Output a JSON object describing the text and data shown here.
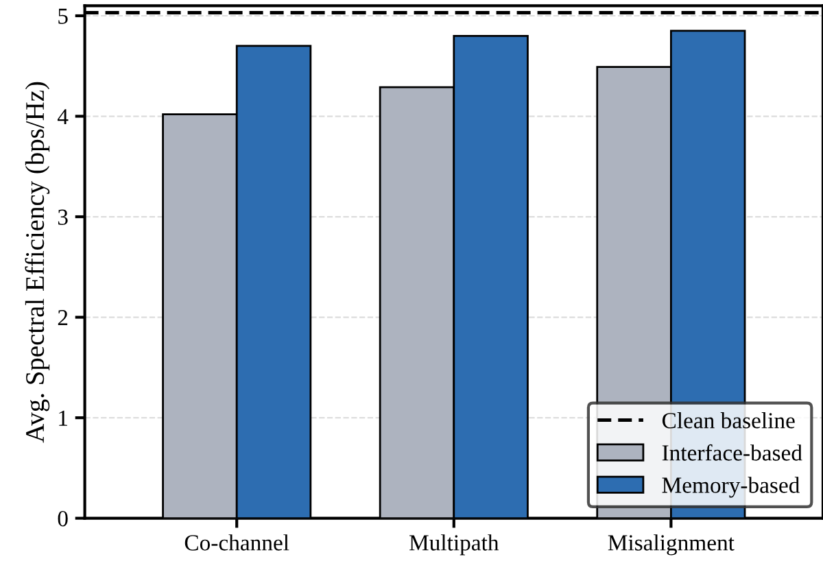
{
  "chart_data": {
    "type": "bar",
    "ylabel": "Avg. Spectral Efficiency (bps/Hz)",
    "categories": [
      "Co-channel",
      "Multipath",
      "Misalignment"
    ],
    "series": [
      {
        "name": "Interface-based",
        "color": "#adb3bf",
        "values": [
          4.02,
          4.29,
          4.49
        ]
      },
      {
        "name": "Memory-based",
        "color": "#2d6db1",
        "values": [
          4.7,
          4.8,
          4.85
        ]
      }
    ],
    "ref_lines": [
      {
        "axis": "y",
        "value": 5.03,
        "label": "Clean baseline",
        "color": "#000000",
        "line_style": "dashed"
      }
    ],
    "ylim": [
      0,
      5.1
    ],
    "yticks": [
      0,
      1,
      2,
      3,
      4,
      5
    ],
    "grid": "y",
    "legend": "bottom right"
  }
}
